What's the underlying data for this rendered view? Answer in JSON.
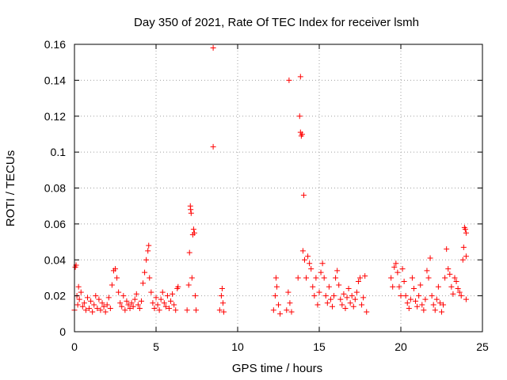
{
  "chart_data": {
    "type": "scatter",
    "title": "Day 350 of 2021, Rate Of TEC Index for receiver lsmh",
    "xlabel": "GPS time / hours",
    "ylabel": "ROTI / TECUs",
    "xlim": [
      0,
      25
    ],
    "ylim": [
      0,
      0.16
    ],
    "xticks": [
      0,
      5,
      10,
      15,
      20,
      25
    ],
    "xtick_labels": [
      "0",
      "5",
      "10",
      "15",
      "20",
      "25"
    ],
    "yticks": [
      0,
      0.02,
      0.04,
      0.06,
      0.08,
      0.1,
      0.12,
      0.14,
      0.16
    ],
    "ytick_labels": [
      "0",
      "0.02",
      "0.04",
      "0.06",
      "0.08",
      "0.1",
      "0.12",
      "0.14",
      "0.16"
    ],
    "grid": true,
    "marker": "+",
    "color": "#ff0000",
    "series": [
      {
        "name": "ROTI",
        "points": [
          [
            0.0,
            0.012
          ],
          [
            0.05,
            0.036
          ],
          [
            0.1,
            0.037
          ],
          [
            0.15,
            0.02
          ],
          [
            0.2,
            0.015
          ],
          [
            0.25,
            0.025
          ],
          [
            0.3,
            0.018
          ],
          [
            0.4,
            0.022
          ],
          [
            0.5,
            0.014
          ],
          [
            0.6,
            0.016
          ],
          [
            0.7,
            0.012
          ],
          [
            0.8,
            0.019
          ],
          [
            0.9,
            0.013
          ],
          [
            1.0,
            0.017
          ],
          [
            1.1,
            0.011
          ],
          [
            1.2,
            0.015
          ],
          [
            1.3,
            0.02
          ],
          [
            1.4,
            0.013
          ],
          [
            1.5,
            0.018
          ],
          [
            1.6,
            0.012
          ],
          [
            1.7,
            0.016
          ],
          [
            1.8,
            0.014
          ],
          [
            1.9,
            0.011
          ],
          [
            2.0,
            0.015
          ],
          [
            2.1,
            0.019
          ],
          [
            2.2,
            0.013
          ],
          [
            2.3,
            0.026
          ],
          [
            2.4,
            0.034
          ],
          [
            2.5,
            0.035
          ],
          [
            2.6,
            0.03
          ],
          [
            2.7,
            0.022
          ],
          [
            2.8,
            0.016
          ],
          [
            2.9,
            0.014
          ],
          [
            3.0,
            0.02
          ],
          [
            3.1,
            0.012
          ],
          [
            3.2,
            0.017
          ],
          [
            3.3,
            0.015
          ],
          [
            3.4,
            0.013
          ],
          [
            3.5,
            0.016
          ],
          [
            3.6,
            0.014
          ],
          [
            3.7,
            0.018
          ],
          [
            3.8,
            0.021
          ],
          [
            3.9,
            0.015
          ],
          [
            4.0,
            0.013
          ],
          [
            4.1,
            0.017
          ],
          [
            4.2,
            0.027
          ],
          [
            4.3,
            0.033
          ],
          [
            4.4,
            0.04
          ],
          [
            4.5,
            0.045
          ],
          [
            4.55,
            0.048
          ],
          [
            4.6,
            0.03
          ],
          [
            4.7,
            0.022
          ],
          [
            4.8,
            0.016
          ],
          [
            4.9,
            0.013
          ],
          [
            5.0,
            0.019
          ],
          [
            5.1,
            0.015
          ],
          [
            5.2,
            0.012
          ],
          [
            5.3,
            0.018
          ],
          [
            5.4,
            0.022
          ],
          [
            5.5,
            0.016
          ],
          [
            5.6,
            0.014
          ],
          [
            5.7,
            0.02
          ],
          [
            5.8,
            0.013
          ],
          [
            5.9,
            0.017
          ],
          [
            6.0,
            0.021
          ],
          [
            6.1,
            0.015
          ],
          [
            6.2,
            0.012
          ],
          [
            6.3,
            0.024
          ],
          [
            6.35,
            0.025
          ],
          [
            6.9,
            0.012
          ],
          [
            7.0,
            0.026
          ],
          [
            7.05,
            0.044
          ],
          [
            7.1,
            0.07
          ],
          [
            7.12,
            0.068
          ],
          [
            7.15,
            0.066
          ],
          [
            7.2,
            0.03
          ],
          [
            7.25,
            0.054
          ],
          [
            7.3,
            0.057
          ],
          [
            7.35,
            0.055
          ],
          [
            7.4,
            0.02
          ],
          [
            7.45,
            0.012
          ],
          [
            8.5,
            0.158
          ],
          [
            8.5,
            0.103
          ],
          [
            8.9,
            0.012
          ],
          [
            9.0,
            0.02
          ],
          [
            9.05,
            0.024
          ],
          [
            9.1,
            0.016
          ],
          [
            9.15,
            0.011
          ],
          [
            12.2,
            0.012
          ],
          [
            12.3,
            0.02
          ],
          [
            12.35,
            0.03
          ],
          [
            12.4,
            0.025
          ],
          [
            12.5,
            0.015
          ],
          [
            12.6,
            0.01
          ],
          [
            13.0,
            0.012
          ],
          [
            13.1,
            0.022
          ],
          [
            13.15,
            0.14
          ],
          [
            13.2,
            0.016
          ],
          [
            13.3,
            0.011
          ],
          [
            13.7,
            0.03
          ],
          [
            13.8,
            0.12
          ],
          [
            13.85,
            0.142
          ],
          [
            13.85,
            0.111
          ],
          [
            13.9,
            0.109
          ],
          [
            13.95,
            0.11
          ],
          [
            14.0,
            0.045
          ],
          [
            14.05,
            0.076
          ],
          [
            14.1,
            0.04
          ],
          [
            14.2,
            0.03
          ],
          [
            14.3,
            0.042
          ],
          [
            14.4,
            0.038
          ],
          [
            14.5,
            0.035
          ],
          [
            14.6,
            0.025
          ],
          [
            14.7,
            0.02
          ],
          [
            14.8,
            0.03
          ],
          [
            14.9,
            0.015
          ],
          [
            15.0,
            0.022
          ],
          [
            15.1,
            0.033
          ],
          [
            15.2,
            0.038
          ],
          [
            15.3,
            0.03
          ],
          [
            15.4,
            0.02
          ],
          [
            15.5,
            0.016
          ],
          [
            15.6,
            0.025
          ],
          [
            15.7,
            0.018
          ],
          [
            15.8,
            0.014
          ],
          [
            15.9,
            0.02
          ],
          [
            16.0,
            0.03
          ],
          [
            16.1,
            0.034
          ],
          [
            16.2,
            0.026
          ],
          [
            16.3,
            0.018
          ],
          [
            16.4,
            0.015
          ],
          [
            16.5,
            0.021
          ],
          [
            16.6,
            0.013
          ],
          [
            16.7,
            0.019
          ],
          [
            16.8,
            0.024
          ],
          [
            16.9,
            0.016
          ],
          [
            17.0,
            0.02
          ],
          [
            17.1,
            0.014
          ],
          [
            17.2,
            0.018
          ],
          [
            17.3,
            0.022
          ],
          [
            17.4,
            0.028
          ],
          [
            17.5,
            0.03
          ],
          [
            17.6,
            0.015
          ],
          [
            17.7,
            0.019
          ],
          [
            17.8,
            0.031
          ],
          [
            17.9,
            0.011
          ],
          [
            19.4,
            0.03
          ],
          [
            19.5,
            0.025
          ],
          [
            19.6,
            0.036
          ],
          [
            19.7,
            0.038
          ],
          [
            19.8,
            0.033
          ],
          [
            19.9,
            0.025
          ],
          [
            20.0,
            0.02
          ],
          [
            20.1,
            0.035
          ],
          [
            20.2,
            0.028
          ],
          [
            20.3,
            0.02
          ],
          [
            20.4,
            0.016
          ],
          [
            20.5,
            0.013
          ],
          [
            20.6,
            0.018
          ],
          [
            20.7,
            0.03
          ],
          [
            20.8,
            0.024
          ],
          [
            20.9,
            0.017
          ],
          [
            21.0,
            0.014
          ],
          [
            21.1,
            0.02
          ],
          [
            21.2,
            0.026
          ],
          [
            21.3,
            0.015
          ],
          [
            21.4,
            0.012
          ],
          [
            21.5,
            0.018
          ],
          [
            21.6,
            0.034
          ],
          [
            21.7,
            0.03
          ],
          [
            21.8,
            0.041
          ],
          [
            21.9,
            0.02
          ],
          [
            22.0,
            0.015
          ],
          [
            22.1,
            0.012
          ],
          [
            22.2,
            0.018
          ],
          [
            22.3,
            0.025
          ],
          [
            22.4,
            0.016
          ],
          [
            22.5,
            0.011
          ],
          [
            22.6,
            0.015
          ],
          [
            22.7,
            0.03
          ],
          [
            22.8,
            0.046
          ],
          [
            22.9,
            0.035
          ],
          [
            23.0,
            0.032
          ],
          [
            23.1,
            0.025
          ],
          [
            23.2,
            0.021
          ],
          [
            23.3,
            0.03
          ],
          [
            23.4,
            0.028
          ],
          [
            23.5,
            0.024
          ],
          [
            23.6,
            0.022
          ],
          [
            23.7,
            0.02
          ],
          [
            23.8,
            0.04
          ],
          [
            23.85,
            0.047
          ],
          [
            23.9,
            0.058
          ],
          [
            23.95,
            0.057
          ],
          [
            24.0,
            0.055
          ],
          [
            24.0,
            0.042
          ],
          [
            24.0,
            0.018
          ]
        ]
      }
    ]
  }
}
